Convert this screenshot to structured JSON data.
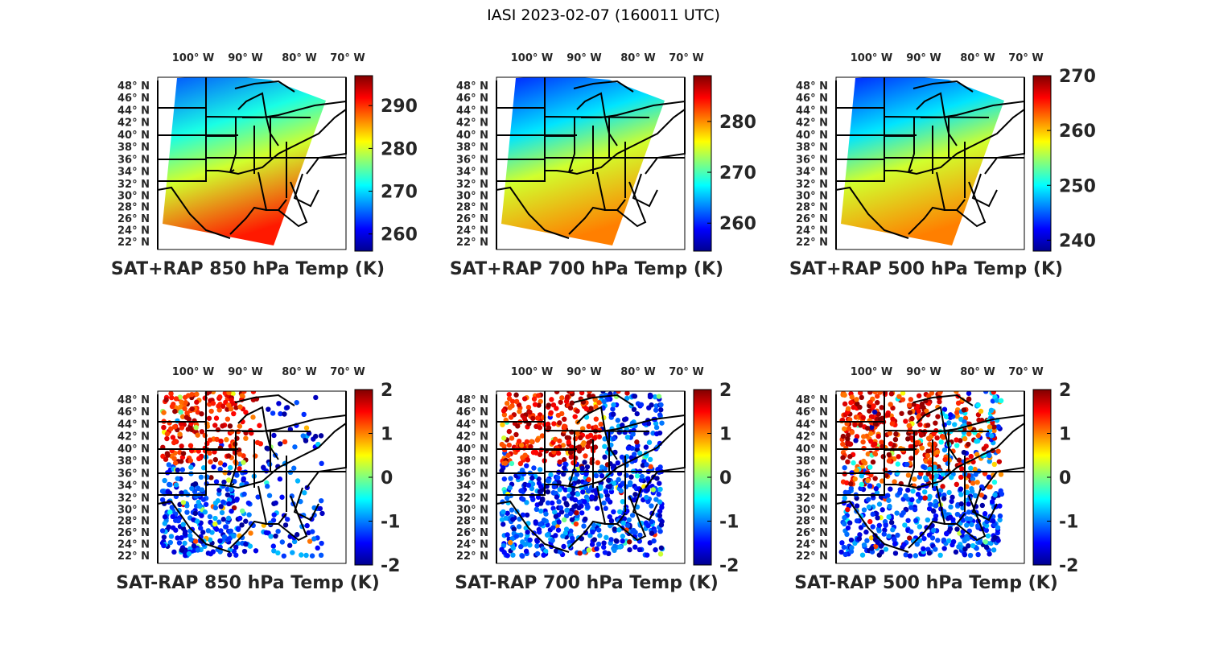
{
  "title": "IASI 2023-02-07 (160011 UTC)",
  "lon_labels": [
    "100° W",
    "90° W",
    "80° W",
    "70° W"
  ],
  "lat_labels": [
    "48° N",
    "46° N",
    "44° N",
    "42° N",
    "40° N",
    "38° N",
    "36° N",
    "34° N",
    "32° N",
    "30° N",
    "28° N",
    "26° N",
    "24° N",
    "22° N"
  ],
  "colormap": "jet",
  "panels": [
    {
      "label": "SAT+RAP 850 hPa Temp (K)",
      "kind": "total",
      "clim": [
        256,
        297
      ],
      "ticks": [
        "260",
        "270",
        "280",
        "290"
      ]
    },
    {
      "label": "SAT+RAP 700 hPa Temp (K)",
      "kind": "total",
      "clim": [
        254.5,
        289
      ],
      "ticks": [
        "260",
        "270",
        "280"
      ]
    },
    {
      "label": "SAT+RAP 500 hPa Temp (K)",
      "kind": "total",
      "clim": [
        238,
        270
      ],
      "ticks": [
        "240",
        "250",
        "260",
        "270"
      ]
    },
    {
      "label": "SAT-RAP 850 hPa Temp (K)",
      "kind": "diff",
      "clim": [
        -2,
        2
      ],
      "ticks": [
        "-2",
        "-1",
        "0",
        "1",
        "2"
      ]
    },
    {
      "label": "SAT-RAP 700 hPa Temp (K)",
      "kind": "diff",
      "clim": [
        -2,
        2
      ],
      "ticks": [
        "-2",
        "-1",
        "0",
        "1",
        "2"
      ]
    },
    {
      "label": "SAT-RAP 500 hPa Temp (K)",
      "kind": "diff",
      "clim": [
        -2,
        2
      ],
      "ticks": [
        "-2",
        "-1",
        "0",
        "1",
        "2"
      ]
    }
  ]
}
